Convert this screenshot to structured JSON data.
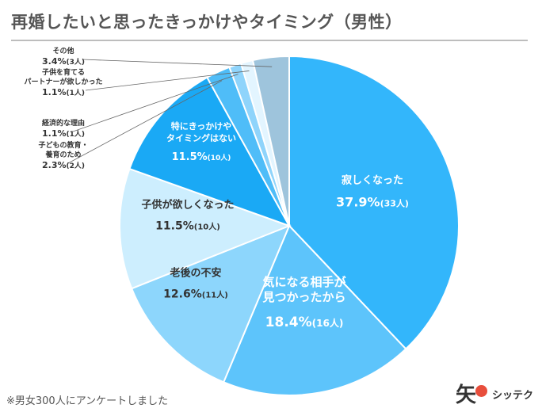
{
  "title": "再婚したいと思ったきっかけやタイミング（男性）",
  "footnote": "※男女300人にアンケートしました",
  "logo": {
    "mark": "矢",
    "brand": "シッテク"
  },
  "chart_data": {
    "type": "pie",
    "title": "再婚したいと思ったきっかけやタイミング（男性）",
    "start": "12 o'clock",
    "direction": "clockwise",
    "slices": [
      {
        "label": "寂しくなった",
        "percent": "37.9%",
        "count": "(33人)",
        "value": 33,
        "color": "#33b6fb",
        "label_style": "inside"
      },
      {
        "label": "気になる相手が見つかったから",
        "percent": "18.4%",
        "count": "(16人)",
        "value": 16,
        "color": "#5dc4fb",
        "label_style": "inside"
      },
      {
        "label": "老後の不安",
        "percent": "12.6%",
        "count": "(11人)",
        "value": 11,
        "color": "#8dd6fc",
        "label_style": "inside"
      },
      {
        "label": "子供が欲しくなった",
        "percent": "11.5%",
        "count": "(10人)",
        "value": 10,
        "color": "#cdeefe",
        "label_style": "inside"
      },
      {
        "label": "特にきっかけやタイミングはない",
        "percent": "11.5%",
        "count": "(10人)",
        "value": 10,
        "color": "#1aa9f5",
        "label_style": "inside"
      },
      {
        "label": "子どもの教育・養育のため",
        "percent": "2.3%",
        "count": "(2人)",
        "value": 2,
        "color": "#4fbdf8",
        "label_style": "callout"
      },
      {
        "label": "経済的な理由",
        "percent": "1.1%",
        "count": "(1人)",
        "value": 1,
        "color": "#8fd4fb",
        "label_style": "callout"
      },
      {
        "label": "子供を育てるパートナーが欲しかった",
        "percent": "1.1%",
        "count": "(1人)",
        "value": 1,
        "color": "#e3f5ff",
        "label_style": "callout"
      },
      {
        "label": "その他",
        "percent": "3.4%",
        "count": "(3人)",
        "value": 3,
        "color": "#9ec4dc",
        "label_style": "callout"
      }
    ]
  }
}
